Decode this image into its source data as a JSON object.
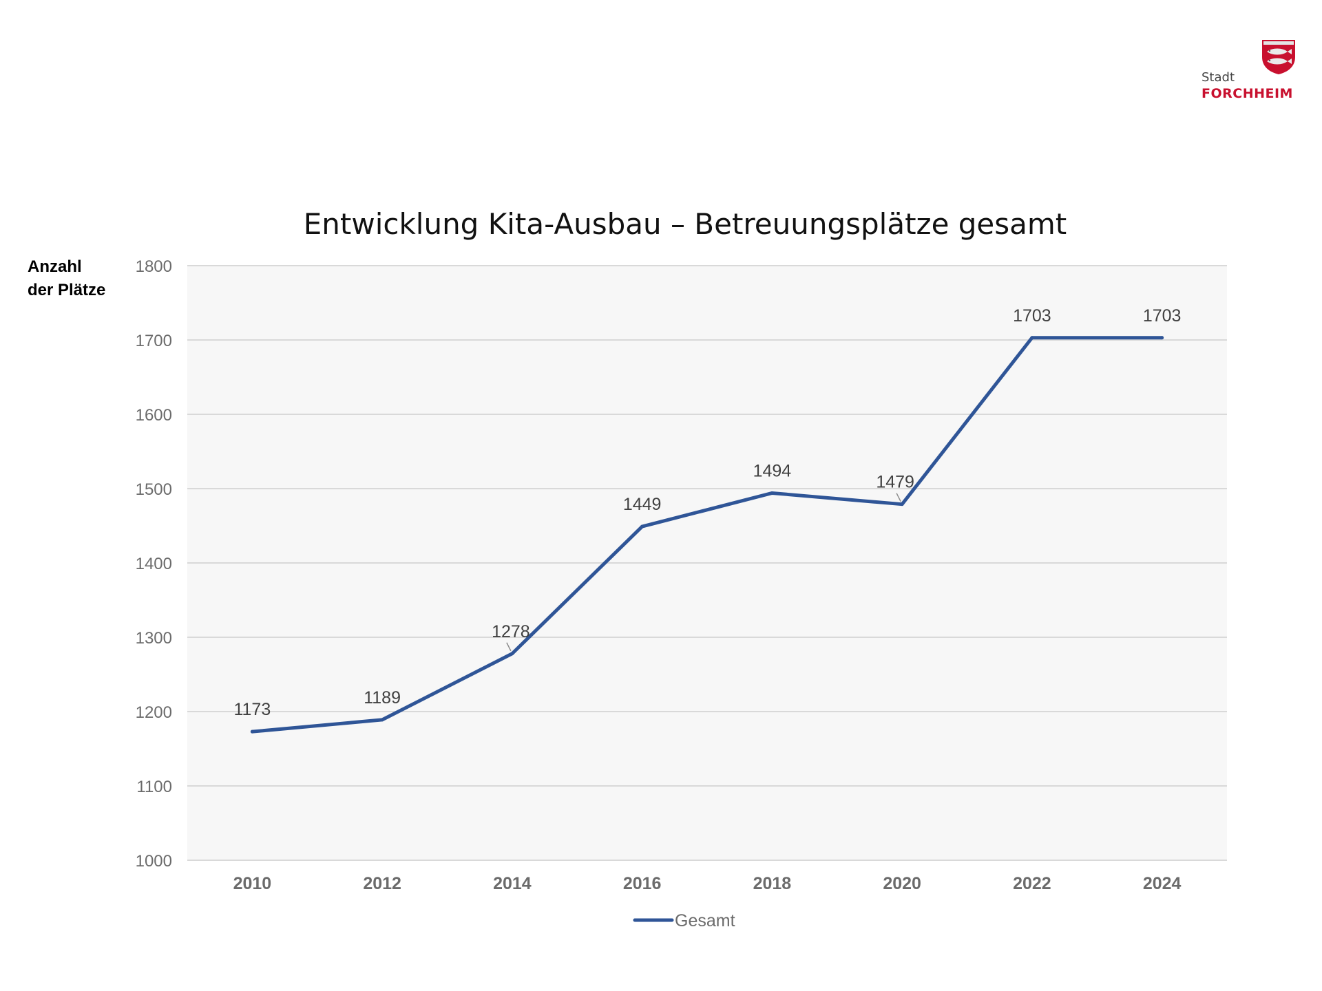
{
  "logo": {
    "stadt": "Stadt",
    "city": "FORCHHEIM",
    "shield_color": "#c8102e"
  },
  "chart_data": {
    "type": "line",
    "title": "Entwicklung Kita-Ausbau – Betreuungsplätze gesamt",
    "ylabel_lines": [
      "Anzahl",
      "der Plätze"
    ],
    "xlabel": "",
    "x": [
      "2010",
      "2012",
      "2014",
      "2016",
      "2018",
      "2020",
      "2022",
      "2024"
    ],
    "series": [
      {
        "name": "Gesamt",
        "values": [
          1173,
          1189,
          1278,
          1449,
          1494,
          1479,
          1703,
          1703
        ],
        "color": "#2f5597"
      }
    ],
    "ylim": [
      1000,
      1800
    ],
    "yticks": [
      1000,
      1100,
      1200,
      1300,
      1400,
      1500,
      1600,
      1700,
      1800
    ],
    "grid": true,
    "legend": "bottom",
    "plot_background": "#f7f7f7",
    "gridline_color": "#d9d9d9"
  }
}
